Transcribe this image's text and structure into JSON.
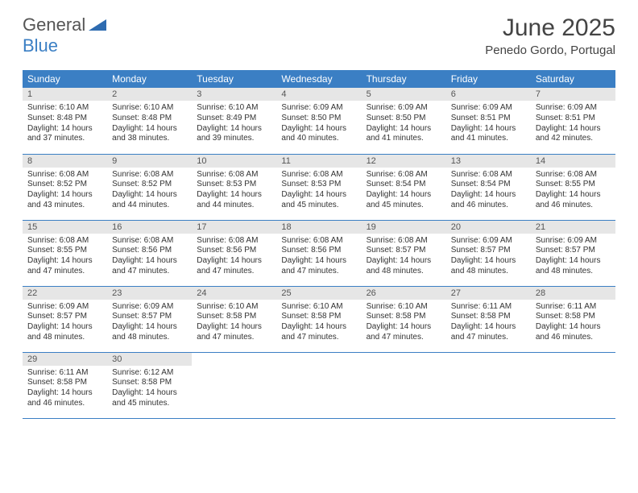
{
  "logo": {
    "general": "General",
    "blue": "Blue"
  },
  "title": "June 2025",
  "location": "Penedo Gordo, Portugal",
  "colors": {
    "header_bg": "#3b7fc4",
    "header_fg": "#ffffff",
    "daynum_bg": "#e6e6e6",
    "border": "#3b7fc4",
    "logo_gray": "#555555",
    "logo_blue": "#3b7fc4"
  },
  "day_labels": [
    "Sunday",
    "Monday",
    "Tuesday",
    "Wednesday",
    "Thursday",
    "Friday",
    "Saturday"
  ],
  "weeks": [
    [
      {
        "n": "1",
        "sr": "6:10 AM",
        "ss": "8:48 PM",
        "dl": "14 hours and 37 minutes."
      },
      {
        "n": "2",
        "sr": "6:10 AM",
        "ss": "8:48 PM",
        "dl": "14 hours and 38 minutes."
      },
      {
        "n": "3",
        "sr": "6:10 AM",
        "ss": "8:49 PM",
        "dl": "14 hours and 39 minutes."
      },
      {
        "n": "4",
        "sr": "6:09 AM",
        "ss": "8:50 PM",
        "dl": "14 hours and 40 minutes."
      },
      {
        "n": "5",
        "sr": "6:09 AM",
        "ss": "8:50 PM",
        "dl": "14 hours and 41 minutes."
      },
      {
        "n": "6",
        "sr": "6:09 AM",
        "ss": "8:51 PM",
        "dl": "14 hours and 41 minutes."
      },
      {
        "n": "7",
        "sr": "6:09 AM",
        "ss": "8:51 PM",
        "dl": "14 hours and 42 minutes."
      }
    ],
    [
      {
        "n": "8",
        "sr": "6:08 AM",
        "ss": "8:52 PM",
        "dl": "14 hours and 43 minutes."
      },
      {
        "n": "9",
        "sr": "6:08 AM",
        "ss": "8:52 PM",
        "dl": "14 hours and 44 minutes."
      },
      {
        "n": "10",
        "sr": "6:08 AM",
        "ss": "8:53 PM",
        "dl": "14 hours and 44 minutes."
      },
      {
        "n": "11",
        "sr": "6:08 AM",
        "ss": "8:53 PM",
        "dl": "14 hours and 45 minutes."
      },
      {
        "n": "12",
        "sr": "6:08 AM",
        "ss": "8:54 PM",
        "dl": "14 hours and 45 minutes."
      },
      {
        "n": "13",
        "sr": "6:08 AM",
        "ss": "8:54 PM",
        "dl": "14 hours and 46 minutes."
      },
      {
        "n": "14",
        "sr": "6:08 AM",
        "ss": "8:55 PM",
        "dl": "14 hours and 46 minutes."
      }
    ],
    [
      {
        "n": "15",
        "sr": "6:08 AM",
        "ss": "8:55 PM",
        "dl": "14 hours and 47 minutes."
      },
      {
        "n": "16",
        "sr": "6:08 AM",
        "ss": "8:56 PM",
        "dl": "14 hours and 47 minutes."
      },
      {
        "n": "17",
        "sr": "6:08 AM",
        "ss": "8:56 PM",
        "dl": "14 hours and 47 minutes."
      },
      {
        "n": "18",
        "sr": "6:08 AM",
        "ss": "8:56 PM",
        "dl": "14 hours and 47 minutes."
      },
      {
        "n": "19",
        "sr": "6:08 AM",
        "ss": "8:57 PM",
        "dl": "14 hours and 48 minutes."
      },
      {
        "n": "20",
        "sr": "6:09 AM",
        "ss": "8:57 PM",
        "dl": "14 hours and 48 minutes."
      },
      {
        "n": "21",
        "sr": "6:09 AM",
        "ss": "8:57 PM",
        "dl": "14 hours and 48 minutes."
      }
    ],
    [
      {
        "n": "22",
        "sr": "6:09 AM",
        "ss": "8:57 PM",
        "dl": "14 hours and 48 minutes."
      },
      {
        "n": "23",
        "sr": "6:09 AM",
        "ss": "8:57 PM",
        "dl": "14 hours and 48 minutes."
      },
      {
        "n": "24",
        "sr": "6:10 AM",
        "ss": "8:58 PM",
        "dl": "14 hours and 47 minutes."
      },
      {
        "n": "25",
        "sr": "6:10 AM",
        "ss": "8:58 PM",
        "dl": "14 hours and 47 minutes."
      },
      {
        "n": "26",
        "sr": "6:10 AM",
        "ss": "8:58 PM",
        "dl": "14 hours and 47 minutes."
      },
      {
        "n": "27",
        "sr": "6:11 AM",
        "ss": "8:58 PM",
        "dl": "14 hours and 47 minutes."
      },
      {
        "n": "28",
        "sr": "6:11 AM",
        "ss": "8:58 PM",
        "dl": "14 hours and 46 minutes."
      }
    ],
    [
      {
        "n": "29",
        "sr": "6:11 AM",
        "ss": "8:58 PM",
        "dl": "14 hours and 46 minutes."
      },
      {
        "n": "30",
        "sr": "6:12 AM",
        "ss": "8:58 PM",
        "dl": "14 hours and 45 minutes."
      },
      null,
      null,
      null,
      null,
      null
    ]
  ],
  "labels": {
    "sunrise": "Sunrise:",
    "sunset": "Sunset:",
    "daylight": "Daylight:"
  }
}
